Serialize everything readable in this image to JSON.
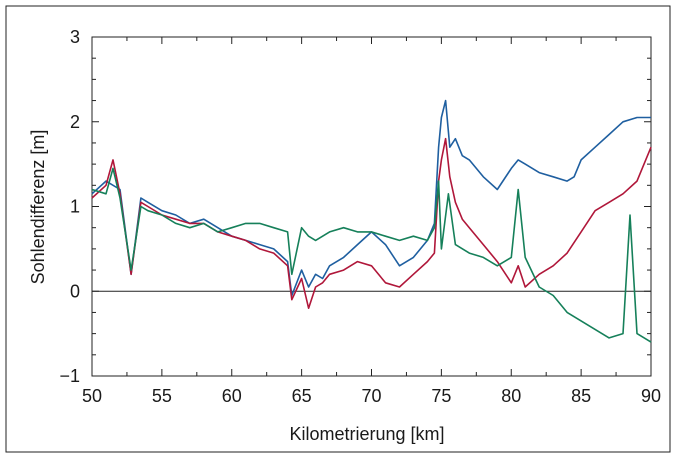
{
  "chart_data": {
    "type": "line",
    "xlabel": "Kilometrierung [km]",
    "ylabel": "Sohlendifferenz [m]",
    "xlim": [
      50,
      90
    ],
    "ylim": [
      -1,
      3
    ],
    "xticks": [
      50,
      55,
      60,
      65,
      70,
      75,
      80,
      85,
      90
    ],
    "yticks": [
      -1,
      0,
      1,
      2,
      3
    ],
    "xtick_labels": [
      "50",
      "55",
      "60",
      "65",
      "70",
      "75",
      "80",
      "85",
      "90"
    ],
    "ytick_labels": [
      "−1",
      "0",
      "1",
      "2",
      "3"
    ],
    "zero_line": true,
    "grid": false,
    "series": [
      {
        "color": "#1f5fa0",
        "x": [
          50,
          51,
          52,
          52.8,
          53.5,
          54,
          55,
          56,
          57,
          58,
          59,
          60,
          61,
          62,
          63,
          64,
          64.3,
          65,
          65.5,
          66,
          66.5,
          67,
          68,
          69,
          70,
          71,
          72,
          73,
          74,
          74.5,
          74.8,
          75,
          75.3,
          75.6,
          76,
          76.5,
          77,
          78,
          79,
          80,
          80.5,
          81,
          82,
          83,
          84,
          84.5,
          85,
          86,
          87,
          88,
          89,
          90
        ],
        "y": [
          1.15,
          1.3,
          1.2,
          0.2,
          1.1,
          1.05,
          0.95,
          0.9,
          0.8,
          0.85,
          0.75,
          0.65,
          0.6,
          0.55,
          0.5,
          0.35,
          -0.05,
          0.25,
          0.05,
          0.2,
          0.15,
          0.3,
          0.4,
          0.55,
          0.7,
          0.55,
          0.3,
          0.4,
          0.6,
          0.8,
          1.7,
          2.05,
          2.25,
          1.7,
          1.8,
          1.6,
          1.55,
          1.35,
          1.2,
          1.45,
          1.55,
          1.5,
          1.4,
          1.35,
          1.3,
          1.35,
          1.55,
          1.7,
          1.85,
          2.0,
          2.05,
          2.05
        ]
      },
      {
        "color": "#b0173a",
        "x": [
          50,
          51,
          51.5,
          52,
          52.8,
          53.5,
          54,
          55,
          56,
          57,
          58,
          59,
          60,
          61,
          62,
          63,
          64,
          64.3,
          65,
          65.5,
          66,
          66.5,
          67,
          68,
          69,
          70,
          71,
          72,
          73,
          74,
          74.5,
          74.8,
          75,
          75.3,
          75.6,
          76,
          76.5,
          77,
          78,
          79,
          80,
          80.5,
          81,
          82,
          83,
          84,
          85,
          86,
          87,
          88,
          89,
          90
        ],
        "y": [
          1.1,
          1.25,
          1.55,
          1.15,
          0.2,
          1.05,
          1.0,
          0.9,
          0.85,
          0.8,
          0.8,
          0.7,
          0.65,
          0.6,
          0.5,
          0.45,
          0.3,
          -0.1,
          0.15,
          -0.2,
          0.05,
          0.1,
          0.2,
          0.25,
          0.35,
          0.3,
          0.1,
          0.05,
          0.2,
          0.35,
          0.45,
          1.3,
          1.55,
          1.8,
          1.35,
          1.05,
          0.85,
          0.75,
          0.55,
          0.35,
          0.1,
          0.3,
          0.05,
          0.2,
          0.3,
          0.45,
          0.7,
          0.95,
          1.05,
          1.15,
          1.3,
          1.7
        ]
      },
      {
        "color": "#16805a",
        "x": [
          50,
          51,
          51.5,
          52,
          52.8,
          53.5,
          54,
          55,
          56,
          57,
          58,
          59,
          60,
          61,
          62,
          63,
          64,
          64.3,
          65,
          65.5,
          66,
          67,
          68,
          69,
          70,
          71,
          72,
          73,
          74,
          74.5,
          74.8,
          75,
          75.5,
          76,
          77,
          78,
          79,
          80,
          80.5,
          81,
          82,
          83,
          84,
          85,
          86,
          87,
          88,
          88.5,
          89,
          90
        ],
        "y": [
          1.2,
          1.15,
          1.45,
          1.1,
          0.25,
          1.0,
          0.95,
          0.9,
          0.8,
          0.75,
          0.8,
          0.7,
          0.75,
          0.8,
          0.8,
          0.75,
          0.7,
          0.2,
          0.75,
          0.65,
          0.6,
          0.7,
          0.75,
          0.7,
          0.7,
          0.65,
          0.6,
          0.65,
          0.6,
          0.75,
          1.3,
          0.5,
          1.15,
          0.55,
          0.45,
          0.4,
          0.3,
          0.4,
          1.2,
          0.4,
          0.05,
          -0.05,
          -0.25,
          -0.35,
          -0.45,
          -0.55,
          -0.5,
          0.9,
          -0.5,
          -0.6
        ]
      }
    ]
  }
}
